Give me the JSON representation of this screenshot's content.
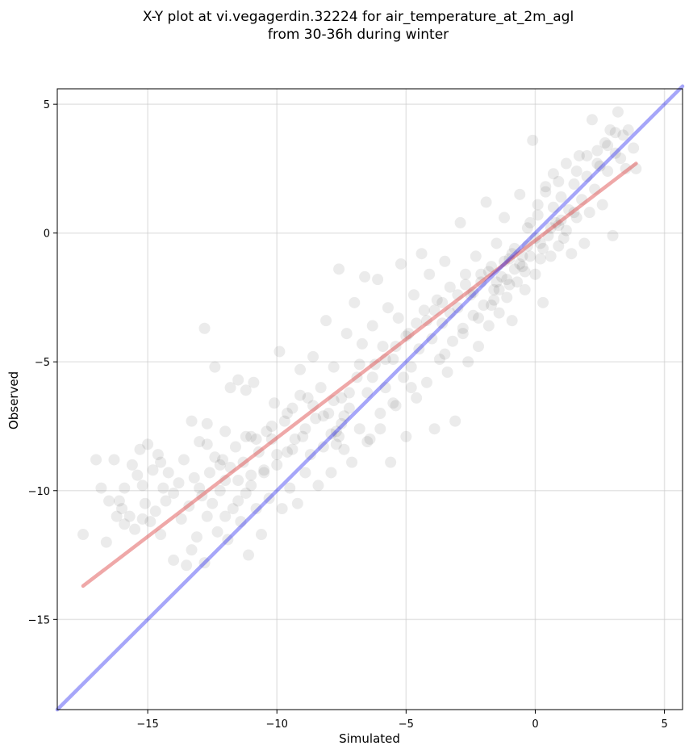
{
  "chart_data": {
    "type": "scatter",
    "title_lines": [
      "X-Y plot at vi.vegagerdin.32224 for air_temperature_at_2m_agl",
      "from 30-36h during winter"
    ],
    "xlabel": "Simulated",
    "ylabel": "Observed",
    "xlim": [
      -18.5,
      5.7
    ],
    "ylim": [
      -18.5,
      5.6
    ],
    "xticks": [
      -15,
      -10,
      -5,
      0,
      5
    ],
    "yticks": [
      -15,
      -10,
      -5,
      0,
      5
    ],
    "xtick_labels": [
      "−15",
      "−10",
      "−5",
      "0",
      "5"
    ],
    "ytick_labels": [
      "−15",
      "−10",
      "−5",
      "0",
      "5"
    ],
    "grid": true,
    "series": [
      {
        "marker_color": "#000000",
        "marker_alpha": 0.08,
        "points": [
          [
            -17.5,
            -11.7
          ],
          [
            -17.0,
            -8.8
          ],
          [
            -16.8,
            -9.9
          ],
          [
            -16.6,
            -12.0
          ],
          [
            -16.5,
            -10.4
          ],
          [
            -16.3,
            -8.8
          ],
          [
            -16.2,
            -11.0
          ],
          [
            -16.1,
            -10.4
          ],
          [
            -15.9,
            -9.9
          ],
          [
            -15.9,
            -11.3
          ],
          [
            -15.7,
            -11.0
          ],
          [
            -15.6,
            -9.0
          ],
          [
            -15.5,
            -11.5
          ],
          [
            -15.4,
            -9.4
          ],
          [
            -15.3,
            -8.4
          ],
          [
            -15.2,
            -11.1
          ],
          [
            -15.2,
            -9.8
          ],
          [
            -15.1,
            -10.5
          ],
          [
            -15.0,
            -8.2
          ],
          [
            -14.9,
            -11.2
          ],
          [
            -14.8,
            -9.2
          ],
          [
            -14.7,
            -10.8
          ],
          [
            -14.6,
            -8.6
          ],
          [
            -14.5,
            -11.7
          ],
          [
            -14.4,
            -9.9
          ],
          [
            -14.3,
            -10.4
          ],
          [
            -14.2,
            -9.3
          ],
          [
            -14.0,
            -10.1
          ],
          [
            -14.0,
            -12.7
          ],
          [
            -13.8,
            -9.7
          ],
          [
            -13.7,
            -11.1
          ],
          [
            -13.6,
            -8.8
          ],
          [
            -13.5,
            -12.9
          ],
          [
            -13.4,
            -10.6
          ],
          [
            -13.3,
            -7.3
          ],
          [
            -13.3,
            -12.3
          ],
          [
            -13.2,
            -9.5
          ],
          [
            -13.1,
            -11.8
          ],
          [
            -13.0,
            -8.1
          ],
          [
            -12.9,
            -10.2
          ],
          [
            -12.8,
            -12.8
          ],
          [
            -12.8,
            -3.7
          ],
          [
            -12.7,
            -7.4
          ],
          [
            -12.7,
            -11.0
          ],
          [
            -12.6,
            -9.3
          ],
          [
            -12.5,
            -10.5
          ],
          [
            -12.4,
            -8.7
          ],
          [
            -12.4,
            -5.2
          ],
          [
            -12.3,
            -11.6
          ],
          [
            -12.2,
            -10.0
          ],
          [
            -12.1,
            -8.8
          ],
          [
            -12.0,
            -9.6
          ],
          [
            -12.0,
            -7.7
          ],
          [
            -11.9,
            -11.9
          ],
          [
            -11.8,
            -6.0
          ],
          [
            -11.8,
            -9.1
          ],
          [
            -11.7,
            -10.7
          ],
          [
            -11.6,
            -8.3
          ],
          [
            -11.5,
            -5.7
          ],
          [
            -11.5,
            -9.6
          ],
          [
            -11.4,
            -11.2
          ],
          [
            -11.3,
            -8.9
          ],
          [
            -11.2,
            -6.1
          ],
          [
            -11.2,
            -10.1
          ],
          [
            -11.1,
            -12.5
          ],
          [
            -11.0,
            -7.9
          ],
          [
            -11.0,
            -9.4
          ],
          [
            -10.9,
            -5.8
          ],
          [
            -10.8,
            -10.7
          ],
          [
            -10.7,
            -8.5
          ],
          [
            -10.6,
            -11.7
          ],
          [
            -10.5,
            -9.2
          ],
          [
            -10.4,
            -7.7
          ],
          [
            -10.3,
            -10.3
          ],
          [
            -10.2,
            -8.0
          ],
          [
            -10.1,
            -6.6
          ],
          [
            -10.0,
            -9.0
          ],
          [
            -9.9,
            -4.6
          ],
          [
            -9.8,
            -10.7
          ],
          [
            -9.7,
            -7.3
          ],
          [
            -9.6,
            -8.5
          ],
          [
            -9.5,
            -9.9
          ],
          [
            -9.4,
            -6.8
          ],
          [
            -9.3,
            -8.0
          ],
          [
            -9.2,
            -10.5
          ],
          [
            -9.1,
            -5.3
          ],
          [
            -9.0,
            -7.9
          ],
          [
            -8.9,
            -9.3
          ],
          [
            -8.8,
            -6.4
          ],
          [
            -8.7,
            -8.6
          ],
          [
            -8.6,
            -4.8
          ],
          [
            -8.5,
            -7.2
          ],
          [
            -8.4,
            -9.8
          ],
          [
            -8.3,
            -6.0
          ],
          [
            -8.2,
            -8.3
          ],
          [
            -8.1,
            -3.4
          ],
          [
            -8.0,
            -7.0
          ],
          [
            -7.9,
            -9.3
          ],
          [
            -7.8,
            -5.2
          ],
          [
            -7.7,
            -7.7
          ],
          [
            -7.6,
            -1.4
          ],
          [
            -7.5,
            -6.4
          ],
          [
            -7.4,
            -8.4
          ],
          [
            -7.3,
            -3.9
          ],
          [
            -7.2,
            -6.8
          ],
          [
            -7.1,
            -8.9
          ],
          [
            -7.0,
            -2.7
          ],
          [
            -6.9,
            -5.6
          ],
          [
            -6.8,
            -7.6
          ],
          [
            -6.7,
            -4.3
          ],
          [
            -6.6,
            -1.7
          ],
          [
            -6.5,
            -6.2
          ],
          [
            -6.4,
            -8.0
          ],
          [
            -6.3,
            -3.6
          ],
          [
            -6.2,
            -5.1
          ],
          [
            -6.1,
            -1.8
          ],
          [
            -6.0,
            -7.0
          ],
          [
            -5.9,
            -4.4
          ],
          [
            -5.8,
            -6.0
          ],
          [
            -5.7,
            -2.9
          ],
          [
            -5.6,
            -8.9
          ],
          [
            -5.5,
            -4.9
          ],
          [
            -5.4,
            -6.7
          ],
          [
            -5.3,
            -3.3
          ],
          [
            -5.2,
            -1.2
          ],
          [
            -5.1,
            -5.6
          ],
          [
            -5.0,
            -7.9
          ],
          [
            -4.9,
            -3.9
          ],
          [
            -4.8,
            -5.2
          ],
          [
            -4.7,
            -2.4
          ],
          [
            -4.6,
            -6.4
          ],
          [
            -4.5,
            -4.5
          ],
          [
            -4.4,
            -0.8
          ],
          [
            -4.3,
            -3.0
          ],
          [
            -4.2,
            -5.8
          ],
          [
            -4.1,
            -1.6
          ],
          [
            -4.0,
            -4.1
          ],
          [
            -3.9,
            -7.6
          ],
          [
            -3.8,
            -2.6
          ],
          [
            -3.7,
            -4.9
          ],
          [
            -3.6,
            -3.5
          ],
          [
            -3.5,
            -1.1
          ],
          [
            -3.4,
            -5.4
          ],
          [
            -3.3,
            -2.1
          ],
          [
            -3.2,
            -4.2
          ],
          [
            -3.1,
            -7.3
          ],
          [
            -3.0,
            -2.9
          ],
          [
            -2.9,
            0.4
          ],
          [
            -2.8,
            -3.7
          ],
          [
            -2.7,
            -1.6
          ],
          [
            -2.6,
            -5.0
          ],
          [
            -2.5,
            -2.4
          ],
          [
            -2.4,
            -3.2
          ],
          [
            -2.3,
            -0.9
          ],
          [
            -2.2,
            -4.4
          ],
          [
            -2.1,
            -1.9
          ],
          [
            -2.0,
            -2.8
          ],
          [
            -1.9,
            1.2
          ],
          [
            -1.8,
            -3.6
          ],
          [
            -1.7,
            -1.3
          ],
          [
            -1.6,
            -2.2
          ],
          [
            -1.5,
            -0.4
          ],
          [
            -1.4,
            -3.1
          ],
          [
            -1.3,
            -1.7
          ],
          [
            -1.2,
            0.6
          ],
          [
            -1.1,
            -2.5
          ],
          [
            -1.0,
            -1.0
          ],
          [
            -0.9,
            -3.4
          ],
          [
            -0.8,
            -0.6
          ],
          [
            -0.7,
            -1.9
          ],
          [
            -0.6,
            1.5
          ],
          [
            -0.5,
            -1.3
          ],
          [
            -0.4,
            -2.2
          ],
          [
            -0.3,
            0.2
          ],
          [
            -0.2,
            -0.9
          ],
          [
            -0.1,
            3.6
          ],
          [
            0.0,
            -1.6
          ],
          [
            0.1,
            0.7
          ],
          [
            0.2,
            -0.4
          ],
          [
            0.3,
            -2.7
          ],
          [
            0.4,
            1.8
          ],
          [
            0.5,
            -0.1
          ],
          [
            0.6,
            -0.9
          ],
          [
            0.7,
            2.3
          ],
          [
            0.8,
            0.4
          ],
          [
            0.9,
            -0.5
          ],
          [
            1.0,
            1.4
          ],
          [
            1.1,
            -0.2
          ],
          [
            1.2,
            2.7
          ],
          [
            1.3,
            0.9
          ],
          [
            1.4,
            -0.8
          ],
          [
            1.5,
            1.9
          ],
          [
            1.6,
            0.6
          ],
          [
            1.7,
            3.0
          ],
          [
            1.8,
            1.3
          ],
          [
            1.9,
            -0.4
          ],
          [
            2.0,
            2.2
          ],
          [
            2.1,
            0.8
          ],
          [
            2.2,
            4.4
          ],
          [
            2.3,
            1.7
          ],
          [
            2.4,
            3.2
          ],
          [
            2.5,
            2.6
          ],
          [
            2.6,
            1.1
          ],
          [
            2.7,
            3.5
          ],
          [
            2.8,
            2.4
          ],
          [
            2.9,
            4.0
          ],
          [
            3.0,
            -0.1
          ],
          [
            3.1,
            3.1
          ],
          [
            3.2,
            4.7
          ],
          [
            3.3,
            2.9
          ],
          [
            3.4,
            3.8
          ],
          [
            3.5,
            2.5
          ],
          [
            3.6,
            4.0
          ],
          [
            3.8,
            3.3
          ],
          [
            3.9,
            2.5
          ],
          [
            -9.4,
            -8.4
          ],
          [
            -8.9,
            -7.6
          ],
          [
            -8.2,
            -7.1
          ],
          [
            -7.8,
            -6.5
          ],
          [
            -7.5,
            -7.4
          ],
          [
            -7.2,
            -6.2
          ],
          [
            -6.8,
            -5.1
          ],
          [
            -6.3,
            -5.6
          ],
          [
            -5.8,
            -4.9
          ],
          [
            -5.4,
            -4.4
          ],
          [
            -5.0,
            -4.0
          ],
          [
            -4.6,
            -3.5
          ],
          [
            -4.2,
            -3.4
          ],
          [
            -3.9,
            -3.0
          ],
          [
            -3.6,
            -2.7
          ],
          [
            -3.3,
            -3.1
          ],
          [
            -3.0,
            -2.4
          ],
          [
            -2.7,
            -2.0
          ],
          [
            -2.4,
            -2.3
          ],
          [
            -2.1,
            -1.6
          ],
          [
            -1.8,
            -1.5
          ],
          [
            -1.5,
            -1.9
          ],
          [
            -1.2,
            -1.1
          ],
          [
            -0.9,
            -0.8
          ],
          [
            -0.6,
            -1.2
          ],
          [
            -0.3,
            -0.5
          ],
          [
            0.0,
            -0.2
          ],
          [
            0.3,
            -0.6
          ],
          [
            0.6,
            0.2
          ],
          [
            0.9,
            0.3
          ],
          [
            1.2,
            0.1
          ],
          [
            1.5,
            0.8
          ],
          [
            -12.0,
            -11.0
          ],
          [
            -11.5,
            -10.4
          ],
          [
            -11.0,
            -9.8
          ],
          [
            -10.5,
            -9.3
          ],
          [
            -10.0,
            -8.6
          ],
          [
            -12.7,
            -8.2
          ],
          [
            -12.2,
            -9.0
          ],
          [
            -11.2,
            -7.9
          ],
          [
            -10.8,
            -8.0
          ],
          [
            -10.2,
            -7.5
          ],
          [
            -9.6,
            -7.0
          ],
          [
            -9.1,
            -6.3
          ],
          [
            -8.6,
            -6.7
          ],
          [
            -7.9,
            -7.8
          ],
          [
            -7.7,
            -8.2
          ],
          [
            -7.6,
            -7.9
          ],
          [
            -7.4,
            -7.1
          ],
          [
            -1.7,
            -2.8
          ],
          [
            -1.4,
            -2.2
          ],
          [
            -1.1,
            -1.8
          ],
          [
            -0.8,
            -1.4
          ],
          [
            -0.5,
            -0.9
          ],
          [
            -0.2,
            0.4
          ],
          [
            0.1,
            1.1
          ],
          [
            0.4,
            1.6
          ],
          [
            0.7,
            1.0
          ],
          [
            1.0,
            0.5
          ],
          [
            -2.8,
            -3.9
          ],
          [
            -2.2,
            -3.3
          ],
          [
            -1.6,
            -2.6
          ],
          [
            -1.0,
            -2.0
          ],
          [
            -0.4,
            -1.5
          ],
          [
            0.2,
            -1.0
          ],
          [
            -3.5,
            -4.7
          ],
          [
            -4.8,
            -6.0
          ],
          [
            -6.0,
            -7.6
          ],
          [
            -6.5,
            -8.1
          ],
          [
            -5.5,
            -6.6
          ],
          [
            2.0,
            3.0
          ],
          [
            2.4,
            2.7
          ],
          [
            2.8,
            3.4
          ],
          [
            3.1,
            3.9
          ],
          [
            1.6,
            2.4
          ],
          [
            0.9,
            2.0
          ],
          [
            -14.5,
            -8.9
          ],
          [
            -13.0,
            -9.9
          ],
          [
            -16.0,
            -10.7
          ]
        ]
      },
      {
        "line_color": "#e05252",
        "line_alpha": 0.5,
        "points": [
          [
            -17.5,
            -13.7
          ],
          [
            3.9,
            2.7
          ]
        ]
      },
      {
        "line_color": "#0000ee",
        "line_alpha": 0.35,
        "points": [
          [
            -18.5,
            -18.5
          ],
          [
            5.7,
            5.7
          ]
        ]
      }
    ]
  }
}
